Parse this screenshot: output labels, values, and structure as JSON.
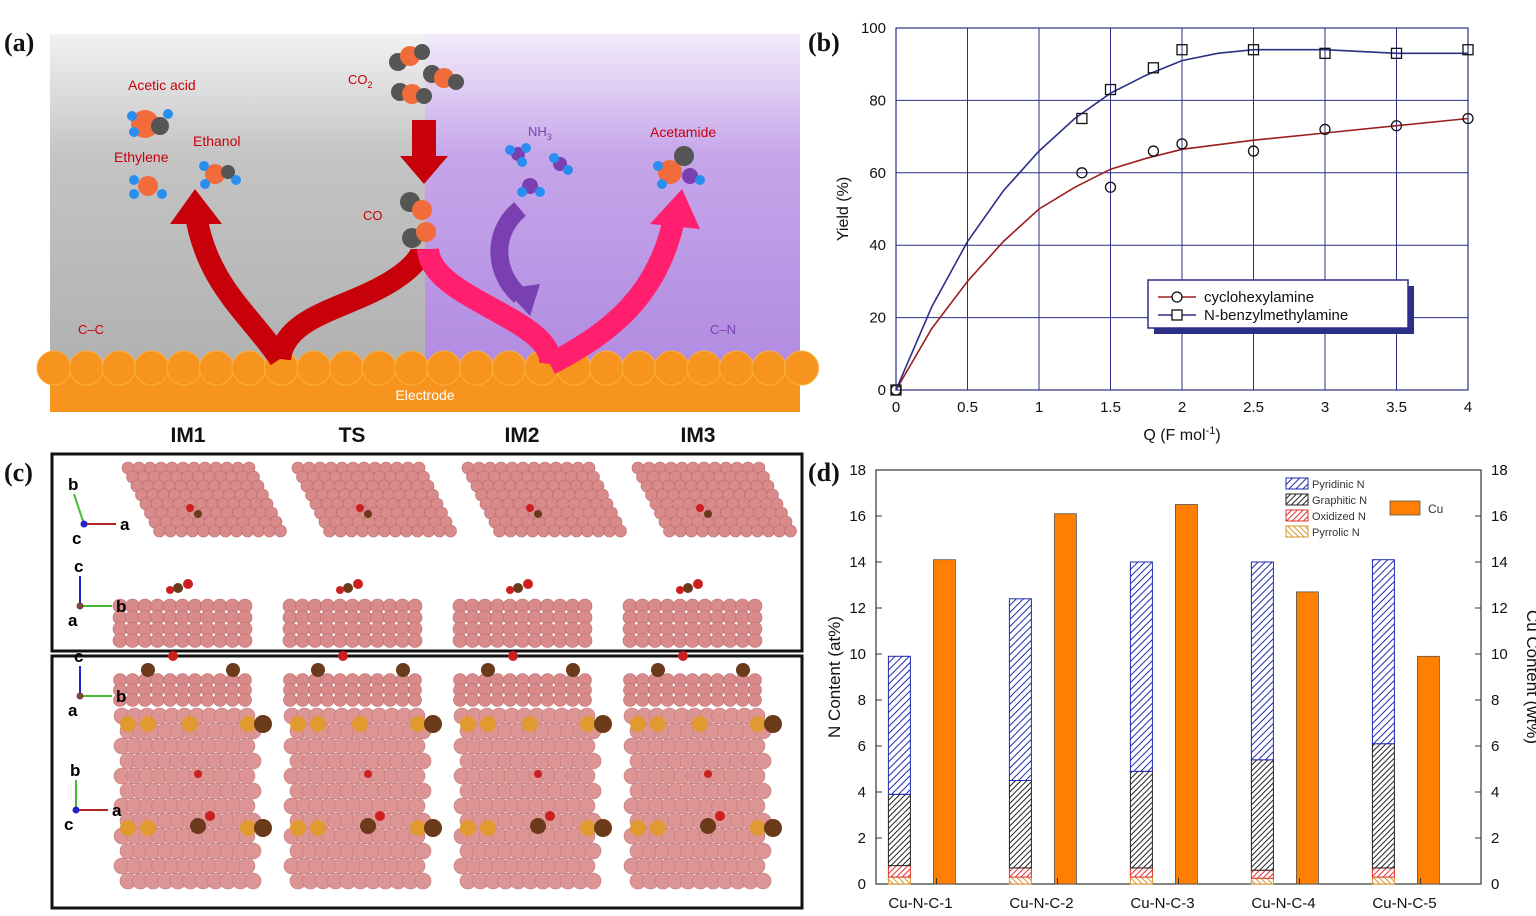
{
  "panels": {
    "a": "(a)",
    "b": "(b)",
    "c": "(c)",
    "d": "(d)"
  },
  "schematic": {
    "left_products": [
      "Acetic acid",
      "Ethanol",
      "Ethylene"
    ],
    "co2": "CO",
    "co2_sub": "2",
    "co": "CO",
    "nh3": "NH",
    "nh3_sub": "3",
    "acetamide": "Acetamide",
    "cc": "C–C",
    "cn": "C–N",
    "electrode": "Electrode",
    "colors": {
      "left_bg": "#b6b6b6",
      "right_bg": "#b592e0",
      "electrode": "#f7941d",
      "red_arrow": "#c8000a",
      "pink_arrow": "#ff1f6e",
      "purple_arrow": "#7a3fb0"
    }
  },
  "structures": {
    "columns": [
      "IM1",
      "TS",
      "IM2",
      "IM3"
    ],
    "axes_top": {
      "plan": [
        "b",
        "c",
        "a"
      ],
      "side": [
        "c",
        "a",
        "b"
      ]
    },
    "axes_bottom": {
      "side": [
        "c",
        "a",
        "b"
      ],
      "plan": [
        "b",
        "c",
        "a"
      ]
    }
  },
  "chart_data": [
    {
      "type": "line",
      "xlabel": "Q (F mol",
      "xlabel_sup": "-1",
      "xlabel_close": ")",
      "ylabel": "Yield (%)",
      "xlim": [
        0,
        4
      ],
      "ylim": [
        0,
        100
      ],
      "xticks": [
        "0",
        "0.5",
        "1",
        "1.5",
        "2",
        "2.5",
        "3",
        "3.5",
        "4"
      ],
      "yticks": [
        "0",
        "20",
        "40",
        "60",
        "80",
        "100"
      ],
      "grid": true,
      "legend_position": "bottom-right",
      "series": [
        {
          "name": "cyclohexylamine",
          "marker": "circle",
          "color": "#9a1f1f",
          "points": [
            [
              0,
              0
            ],
            [
              1.3,
              60
            ],
            [
              1.5,
              56
            ],
            [
              1.8,
              66
            ],
            [
              2.0,
              68
            ],
            [
              2.5,
              66
            ],
            [
              3.0,
              72
            ],
            [
              3.5,
              73
            ],
            [
              4.0,
              75
            ]
          ],
          "fit": [
            [
              0,
              0
            ],
            [
              0.25,
              17
            ],
            [
              0.5,
              30
            ],
            [
              0.75,
              41
            ],
            [
              1.0,
              50
            ],
            [
              1.25,
              56
            ],
            [
              1.5,
              61
            ],
            [
              1.75,
              64
            ],
            [
              2.0,
              66.5
            ],
            [
              2.5,
              69
            ],
            [
              3.0,
              71
            ],
            [
              3.5,
              73
            ],
            [
              4.0,
              75
            ]
          ]
        },
        {
          "name": "N-benzylmethylamine",
          "marker": "square",
          "color": "#2b2f86",
          "points": [
            [
              0,
              0
            ],
            [
              1.3,
              75
            ],
            [
              1.5,
              83
            ],
            [
              1.8,
              89
            ],
            [
              2.0,
              94
            ],
            [
              2.5,
              94
            ],
            [
              3.0,
              93
            ],
            [
              3.5,
              93
            ],
            [
              4.0,
              94
            ]
          ],
          "fit": [
            [
              0,
              0
            ],
            [
              0.25,
              23
            ],
            [
              0.5,
              41
            ],
            [
              0.75,
              55
            ],
            [
              1.0,
              66
            ],
            [
              1.25,
              75
            ],
            [
              1.5,
              82
            ],
            [
              1.75,
              87
            ],
            [
              2.0,
              91
            ],
            [
              2.25,
              93
            ],
            [
              2.5,
              94
            ],
            [
              3.0,
              94
            ],
            [
              3.5,
              93
            ],
            [
              4.0,
              93
            ]
          ]
        }
      ]
    },
    {
      "type": "bar",
      "categories": [
        "Cu-N-C-1",
        "Cu-N-C-2",
        "Cu-N-C-3",
        "Cu-N-C-4",
        "Cu-N-C-5"
      ],
      "ylabel": "N Content (at%)",
      "y2label": "Cu Content (wt%)",
      "ylim": [
        0,
        18
      ],
      "y2lim": [
        0,
        18
      ],
      "yticks": [
        "0",
        "2",
        "4",
        "6",
        "8",
        "10",
        "12",
        "14",
        "16",
        "18"
      ],
      "legend_position": "top-right",
      "stacked_series": [
        {
          "name": "Pyrrolic N",
          "color": "#d9962e",
          "values": [
            0.3,
            0.3,
            0.3,
            0.25,
            0.3
          ]
        },
        {
          "name": "Oxidized N",
          "color": "#e03030",
          "values": [
            0.5,
            0.4,
            0.4,
            0.35,
            0.4
          ]
        },
        {
          "name": "Graphitic N",
          "color": "#222222",
          "values": [
            3.1,
            3.8,
            4.2,
            4.8,
            5.4
          ]
        },
        {
          "name": "Pyridinic N",
          "color": "#1f2bb0",
          "values": [
            6.0,
            7.9,
            9.1,
            8.6,
            8.0
          ]
        }
      ],
      "bar_series": {
        "name": "Cu",
        "color": "#ff8000",
        "values": [
          14.1,
          16.1,
          16.5,
          12.7,
          9.9
        ]
      }
    }
  ]
}
